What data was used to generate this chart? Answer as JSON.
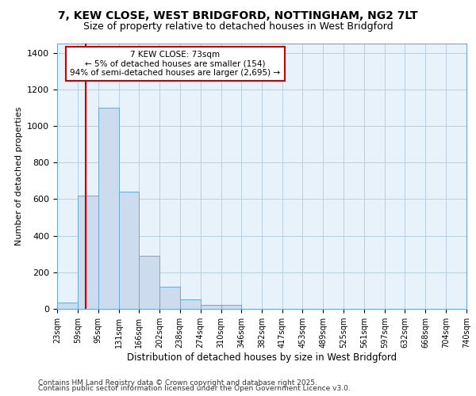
{
  "title_line1": "7, KEW CLOSE, WEST BRIDGFORD, NOTTINGHAM, NG2 7LT",
  "title_line2": "Size of property relative to detached houses in West Bridgford",
  "xlabel": "Distribution of detached houses by size in West Bridgford",
  "ylabel": "Number of detached properties",
  "footer_line1": "Contains HM Land Registry data © Crown copyright and database right 2025.",
  "footer_line2": "Contains public sector information licensed under the Open Government Licence v3.0.",
  "annotation_line0": "7 KEW CLOSE: 73sqm",
  "annotation_line1": "← 5% of detached houses are smaller (154)",
  "annotation_line2": "94% of semi-detached houses are larger (2,695) →",
  "property_size": 73,
  "bin_edges": [
    23,
    59,
    95,
    131,
    166,
    202,
    238,
    274,
    310,
    346,
    382,
    417,
    453,
    489,
    525,
    561,
    597,
    632,
    668,
    704,
    740
  ],
  "bar_values": [
    35,
    620,
    1100,
    640,
    290,
    120,
    50,
    20,
    20,
    0,
    0,
    0,
    0,
    0,
    0,
    0,
    0,
    0,
    0,
    0
  ],
  "bar_color": "#ccdcee",
  "bar_edge_color": "#6aaad4",
  "grid_color": "#b8cfe0",
  "background_color": "#e8f2fb",
  "red_line_color": "#cc0000",
  "annotation_box_edge": "#cc0000",
  "ylim": [
    0,
    1450
  ],
  "yticks": [
    0,
    200,
    400,
    600,
    800,
    1000,
    1200,
    1400
  ],
  "title_fontsize": 10,
  "subtitle_fontsize": 9,
  "footer_fontsize": 6.5
}
